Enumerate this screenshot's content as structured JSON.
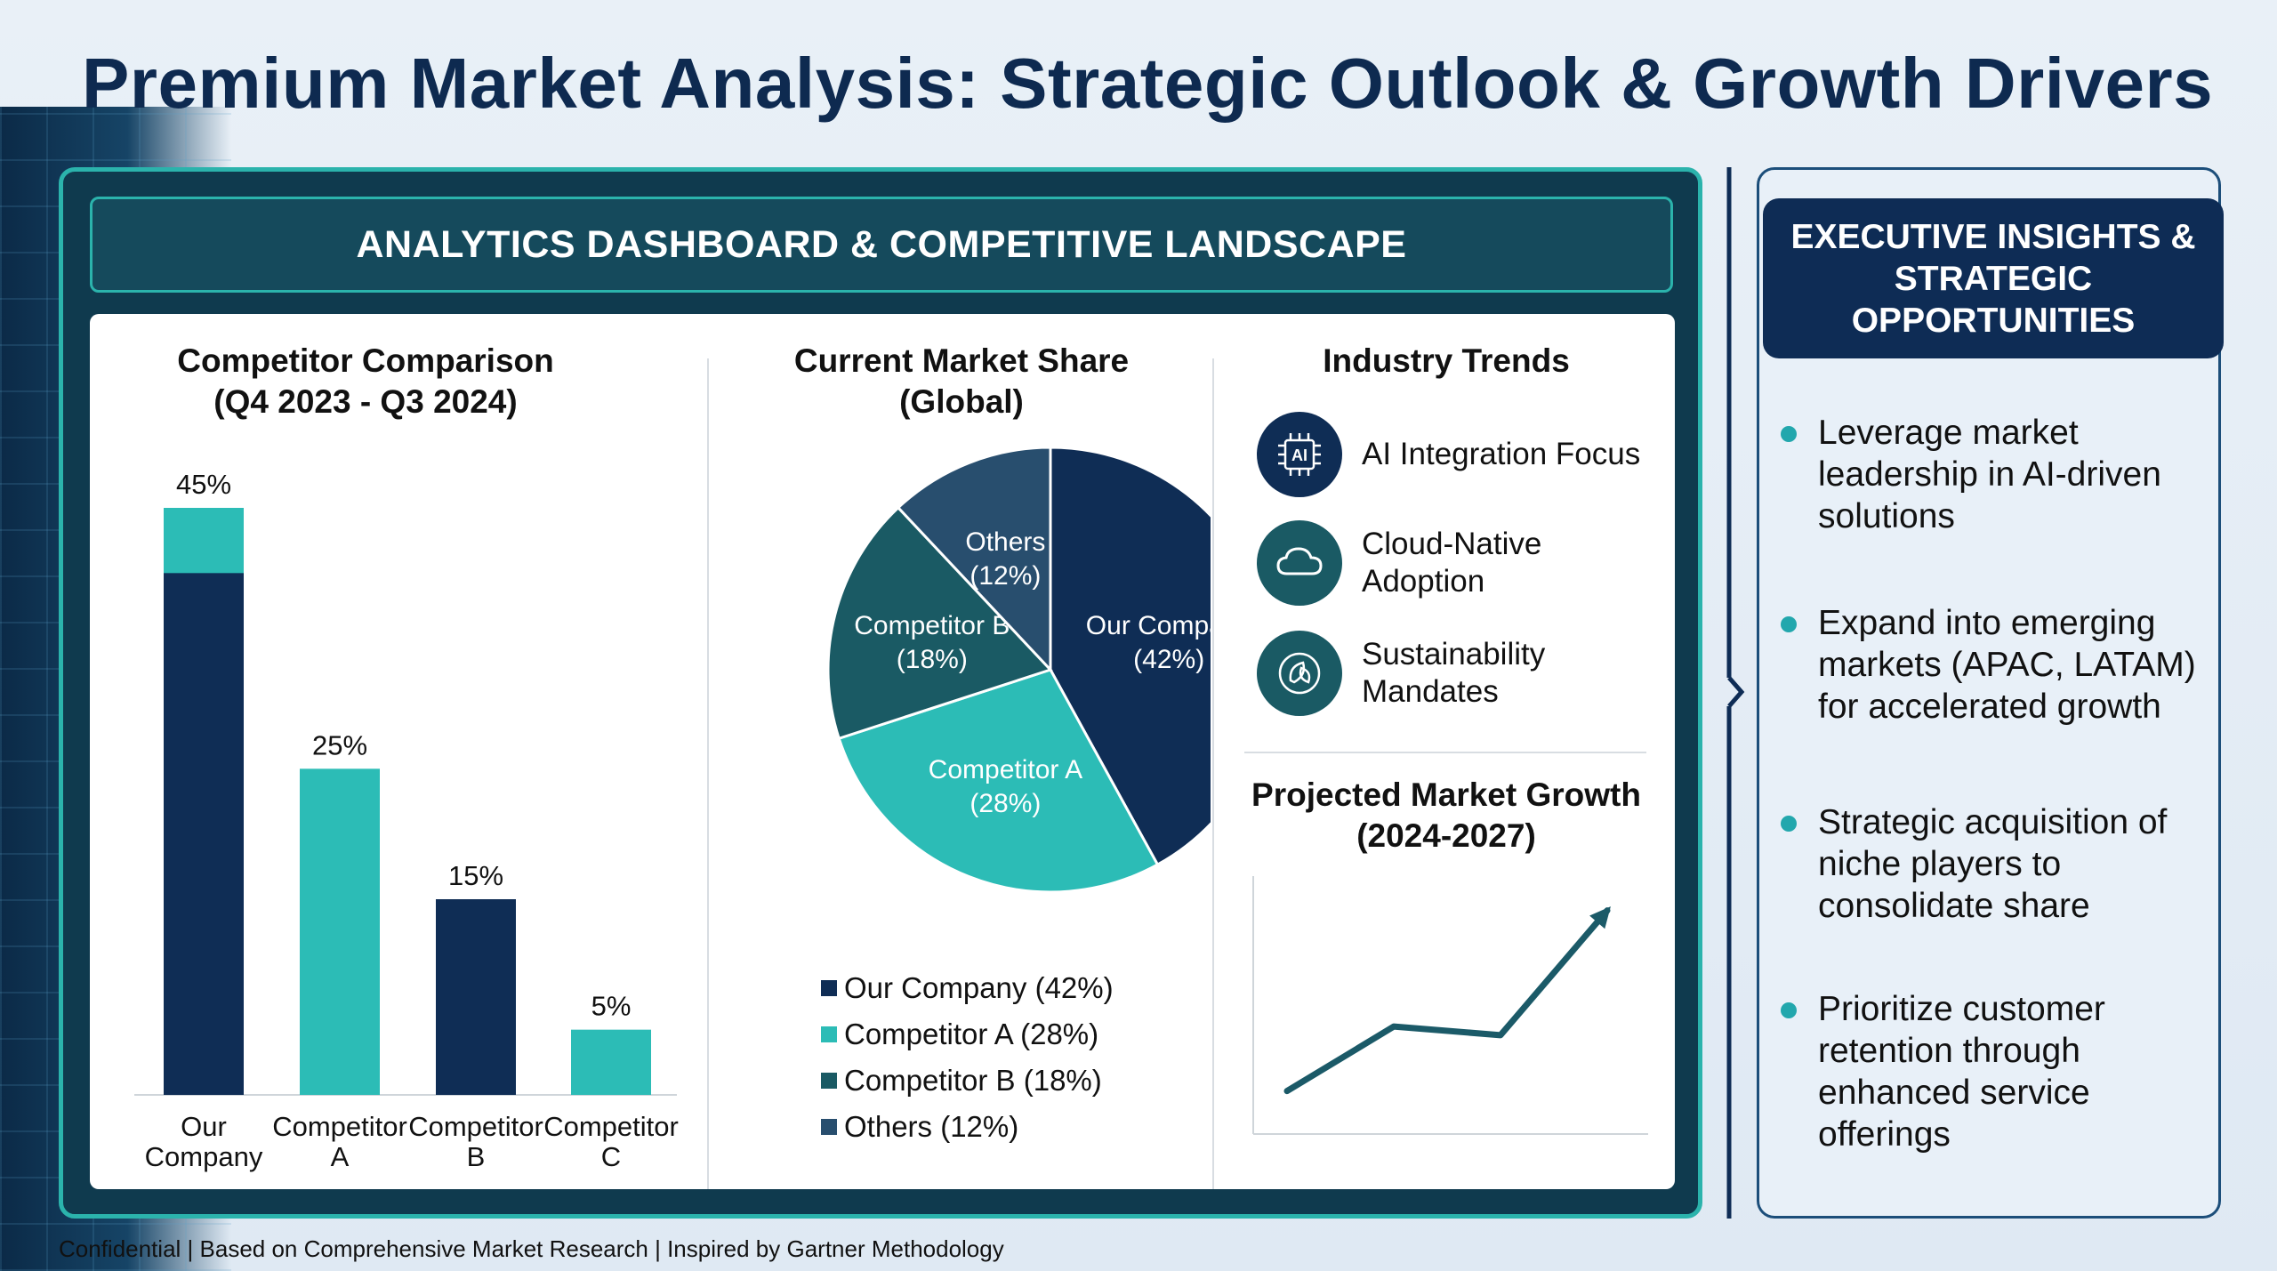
{
  "title": "Premium Market Analysis: Strategic Outlook & Growth Drivers",
  "dashboard": {
    "header": "ANALYTICS DASHBOARD & COMPETITIVE LANDSCAPE",
    "competitor_title_1": "Competitor Comparison",
    "competitor_title_2": "(Q4 2023 - Q3 2024)",
    "share_title_1": "Current Market Share",
    "share_title_2": "(Global)",
    "trends_title": "Industry Trends",
    "growth_title_1": "Projected Market Growth",
    "growth_title_2": "(2024-2027)"
  },
  "chart_data": [
    {
      "type": "bar",
      "title": "Competitor Comparison (Q4 2023 - Q3 2024)",
      "categories": [
        "Our Company",
        "Competitor A",
        "Competitor B",
        "Competitor C"
      ],
      "category_lines": [
        [
          "Our",
          "Company"
        ],
        [
          "Competitor",
          "A"
        ],
        [
          "Competitor",
          "B"
        ],
        [
          "Competitor",
          "C"
        ]
      ],
      "values": [
        45,
        25,
        15,
        5
      ],
      "value_labels": [
        "45%",
        "25%",
        "15%",
        "5%"
      ],
      "colors": [
        "#0f2d55",
        "#2cbcb6",
        "#0f2d55",
        "#2cbcb6"
      ],
      "highlight_top_value": 5,
      "highlight_color": "#2cbcb6",
      "ylim": [
        0,
        45
      ]
    },
    {
      "type": "pie",
      "title": "Current Market Share (Global)",
      "slices": [
        {
          "name": "Our Company",
          "value": 42,
          "label_1": "Our Company",
          "label_2": "(42%)",
          "legend": "Our Company (42%)",
          "color": "#0f2d55"
        },
        {
          "name": "Competitor A",
          "value": 28,
          "label_1": "Competitor A",
          "label_2": "(28%)",
          "legend": "Competitor A (28%)",
          "color": "#2cbcb6"
        },
        {
          "name": "Competitor B",
          "value": 18,
          "label_1": "Competitor B",
          "label_2": "(18%)",
          "legend": "Competitor B (18%)",
          "color": "#1a5a64"
        },
        {
          "name": "Others",
          "value": 12,
          "label_1": "Others",
          "label_2": "(12%)",
          "legend": "Others (12%)",
          "color": "#284e6e"
        }
      ]
    },
    {
      "type": "line",
      "title": "Projected Market Growth (2024-2027)",
      "x": [
        0,
        1,
        2,
        3
      ],
      "values": [
        1,
        2.5,
        2.3,
        5.2
      ],
      "color": "#1b5a68"
    }
  ],
  "trends": [
    {
      "icon": "ai-chip-icon",
      "label": "AI Integration Focus",
      "color": "#0f2d55"
    },
    {
      "icon": "cloud-icon",
      "label_1": "Cloud-Native",
      "label_2": "Adoption",
      "color": "#1a5a64"
    },
    {
      "icon": "leaf-icon",
      "label_1": "Sustainability",
      "label_2": "Mandates",
      "color": "#1a5a64"
    }
  ],
  "insights": {
    "header_1": "EXECUTIVE INSIGHTS &",
    "header_2": "STRATEGIC",
    "header_3": "OPPORTUNITIES",
    "items": [
      {
        "l1": "Leverage market",
        "l2": "leadership in AI-driven",
        "l3": "solutions"
      },
      {
        "l1": "Expand into emerging",
        "l2": "markets (APAC, LATAM)",
        "l3": "for accelerated growth"
      },
      {
        "l1": "Strategic acquisition of",
        "l2": "niche players to",
        "l3": "consolidate share"
      },
      {
        "l1": "Prioritize customer",
        "l2": "retention through",
        "l3": "enhanced service",
        "l4": "offerings"
      }
    ]
  },
  "footer": "Confidential | Based on Comprehensive Market Research | Inspired by Gartner Methodology"
}
